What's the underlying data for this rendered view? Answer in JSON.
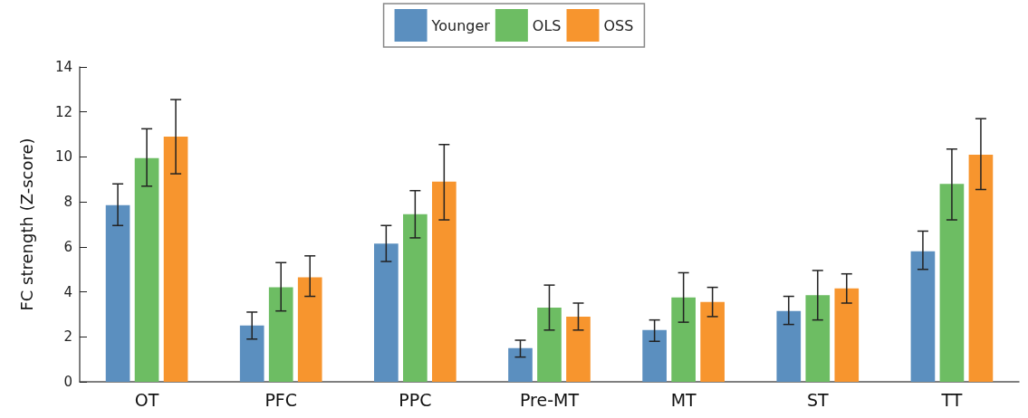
{
  "chart_data": {
    "type": "bar",
    "ylabel": "FC strength (Z-score)",
    "categories": [
      "OT",
      "PFC",
      "PPC",
      "Pre-MT",
      "MT",
      "ST",
      "TT"
    ],
    "series": [
      {
        "name": "Younger",
        "color": "#5b8fbf",
        "values": [
          7.85,
          2.5,
          6.15,
          1.5,
          2.3,
          3.15,
          5.8
        ],
        "errors": [
          [
            6.95,
            8.8
          ],
          [
            1.9,
            3.1
          ],
          [
            5.35,
            6.95
          ],
          [
            1.1,
            1.85
          ],
          [
            1.8,
            2.75
          ],
          [
            2.55,
            3.8
          ],
          [
            5.0,
            6.7
          ]
        ]
      },
      {
        "name": "OLS",
        "color": "#6dbd63",
        "values": [
          9.95,
          4.2,
          7.45,
          3.3,
          3.75,
          3.85,
          8.8
        ],
        "errors": [
          [
            8.7,
            11.25
          ],
          [
            3.15,
            5.3
          ],
          [
            6.4,
            8.5
          ],
          [
            2.3,
            4.3
          ],
          [
            2.65,
            4.85
          ],
          [
            2.75,
            4.95
          ],
          [
            7.2,
            10.35
          ]
        ]
      },
      {
        "name": "OSS",
        "color": "#f7952e",
        "values": [
          10.9,
          4.65,
          8.9,
          2.9,
          3.55,
          4.15,
          10.1
        ],
        "errors": [
          [
            9.25,
            12.55
          ],
          [
            3.8,
            5.6
          ],
          [
            7.2,
            10.55
          ],
          [
            2.3,
            3.5
          ],
          [
            2.9,
            4.2
          ],
          [
            3.5,
            4.8
          ],
          [
            8.55,
            11.7
          ]
        ]
      }
    ],
    "ylim": [
      0,
      14
    ],
    "yticks": [
      0,
      2,
      4,
      6,
      8,
      10,
      12,
      14
    ],
    "grid": false,
    "legend": "top"
  }
}
